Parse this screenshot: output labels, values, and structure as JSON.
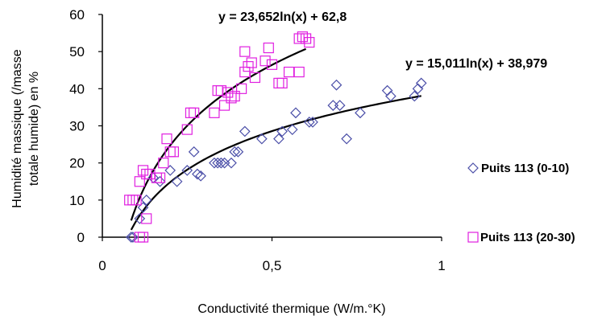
{
  "chart_data": {
    "type": "scatter",
    "title": "",
    "xlabel": "Conductivité thermique (W/m.°K)",
    "ylabel_line1": "Humidité massique (/masse",
    "ylabel_line2": "totale humide) en %",
    "xlim": [
      0,
      1
    ],
    "ylim": [
      0,
      60
    ],
    "x_ticks": [
      0,
      0.5,
      1
    ],
    "x_tick_labels": [
      "0",
      "0,5",
      "1"
    ],
    "y_ticks": [
      0,
      10,
      20,
      30,
      40,
      50,
      60
    ],
    "y_tick_labels": [
      "0",
      "10",
      "20",
      "30",
      "40",
      "50",
      "60"
    ],
    "grid": false,
    "legend_placement": "right",
    "series": [
      {
        "name": "Puits 113 (0-10)",
        "marker": "diamond",
        "color": "#4b4fa8",
        "trend_equation": "y = 15,011ln(x) + 38,979",
        "trend": {
          "type": "log",
          "a": 15.011,
          "b": 38.979,
          "x_range": [
            0.085,
            0.94
          ]
        },
        "points": [
          [
            0.085,
            0
          ],
          [
            0.09,
            0
          ],
          [
            0.11,
            5
          ],
          [
            0.12,
            8
          ],
          [
            0.13,
            10
          ],
          [
            0.15,
            16
          ],
          [
            0.17,
            15
          ],
          [
            0.2,
            18
          ],
          [
            0.22,
            15
          ],
          [
            0.25,
            18
          ],
          [
            0.27,
            23
          ],
          [
            0.28,
            17
          ],
          [
            0.29,
            16.5
          ],
          [
            0.33,
            20
          ],
          [
            0.34,
            20
          ],
          [
            0.35,
            20
          ],
          [
            0.36,
            20
          ],
          [
            0.38,
            20
          ],
          [
            0.39,
            23
          ],
          [
            0.4,
            23
          ],
          [
            0.42,
            28.5
          ],
          [
            0.47,
            26.5
          ],
          [
            0.52,
            26.5
          ],
          [
            0.53,
            28.5
          ],
          [
            0.56,
            29
          ],
          [
            0.57,
            33.5
          ],
          [
            0.61,
            31
          ],
          [
            0.62,
            31
          ],
          [
            0.68,
            35.5
          ],
          [
            0.69,
            41
          ],
          [
            0.7,
            35.5
          ],
          [
            0.72,
            26.5
          ],
          [
            0.76,
            33.5
          ],
          [
            0.84,
            39.5
          ],
          [
            0.85,
            38
          ],
          [
            0.92,
            38
          ],
          [
            0.93,
            40
          ],
          [
            0.94,
            41.5
          ]
        ]
      },
      {
        "name": "Puits 113 (20-30)",
        "marker": "square",
        "color": "#e020e0",
        "trend_equation": "y = 23,652ln(x) + 62,8",
        "trend": {
          "type": "log",
          "a": 23.652,
          "b": 62.8,
          "x_range": [
            0.085,
            0.6
          ]
        },
        "points": [
          [
            0.08,
            10
          ],
          [
            0.09,
            10
          ],
          [
            0.1,
            10
          ],
          [
            0.11,
            15
          ],
          [
            0.12,
            18
          ],
          [
            0.13,
            17
          ],
          [
            0.11,
            0
          ],
          [
            0.12,
            0
          ],
          [
            0.13,
            5
          ],
          [
            0.14,
            17
          ],
          [
            0.16,
            16
          ],
          [
            0.17,
            16
          ],
          [
            0.18,
            20
          ],
          [
            0.19,
            26.5
          ],
          [
            0.2,
            23
          ],
          [
            0.21,
            23
          ],
          [
            0.25,
            29
          ],
          [
            0.26,
            33.5
          ],
          [
            0.27,
            33.5
          ],
          [
            0.33,
            33.5
          ],
          [
            0.34,
            39.5
          ],
          [
            0.35,
            39.5
          ],
          [
            0.36,
            35.5
          ],
          [
            0.37,
            39
          ],
          [
            0.38,
            37.5
          ],
          [
            0.39,
            38
          ],
          [
            0.41,
            40
          ],
          [
            0.42,
            44.5
          ],
          [
            0.42,
            50
          ],
          [
            0.43,
            46
          ],
          [
            0.44,
            47
          ],
          [
            0.45,
            43
          ],
          [
            0.48,
            47.5
          ],
          [
            0.49,
            51
          ],
          [
            0.5,
            46.5
          ],
          [
            0.52,
            41.5
          ],
          [
            0.53,
            41.5
          ],
          [
            0.55,
            44.5
          ],
          [
            0.58,
            44.5
          ],
          [
            0.58,
            53.5
          ],
          [
            0.59,
            54
          ],
          [
            0.6,
            53.5
          ],
          [
            0.61,
            52.5
          ]
        ]
      }
    ]
  }
}
